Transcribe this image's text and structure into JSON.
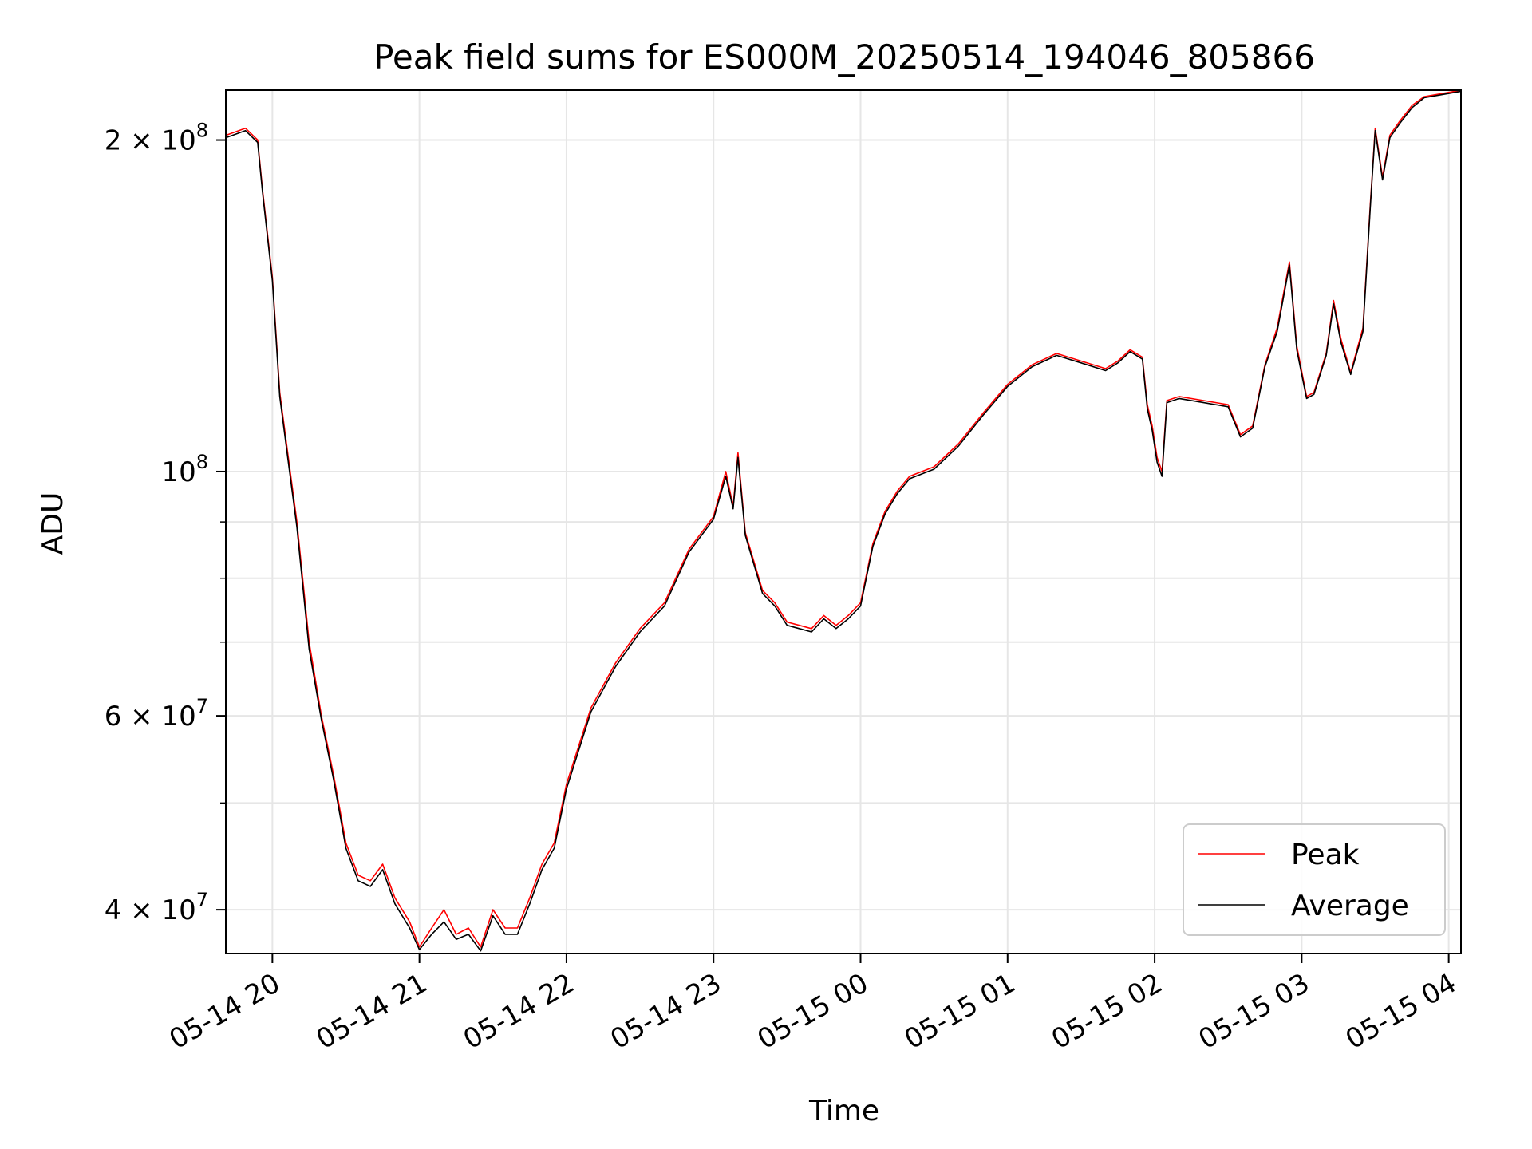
{
  "chart_data": {
    "type": "line",
    "title": "Peak field sums for ES000M_20250514_194046_805866",
    "xlabel": "Time",
    "ylabel": "ADU",
    "xlim": [
      "2025-05-14 19:41",
      "2025-05-15 04:05"
    ],
    "ylim": [
      36500000,
      222000000
    ],
    "yscale": "log",
    "grid": true,
    "legend_position": "lower right",
    "x_ticks": [
      "05-14 20",
      "05-14 21",
      "05-14 22",
      "05-14 23",
      "05-15 00",
      "05-15 01",
      "05-15 02",
      "05-15 03",
      "05-15 04"
    ],
    "y_ticks": [
      {
        "value": 40000000,
        "label": "4 × 10",
        "exp": "7"
      },
      {
        "value": 60000000,
        "label": "6 × 10",
        "exp": "7"
      },
      {
        "value": 100000000,
        "label": "10",
        "exp": "8"
      },
      {
        "value": 200000000,
        "label": "2 × 10",
        "exp": "8"
      }
    ],
    "series": [
      {
        "name": "Peak",
        "color": "#ff0000"
      },
      {
        "name": "Average",
        "color": "#000000"
      }
    ],
    "x": [
      "2025-05-14 19:41",
      "2025-05-14 19:49",
      "2025-05-14 19:54",
      "2025-05-14 19:56",
      "2025-05-14 20:00",
      "2025-05-14 20:03",
      "2025-05-14 20:06",
      "2025-05-14 20:10",
      "2025-05-14 20:15",
      "2025-05-14 20:20",
      "2025-05-14 20:25",
      "2025-05-14 20:30",
      "2025-05-14 20:35",
      "2025-05-14 20:40",
      "2025-05-14 20:45",
      "2025-05-14 20:50",
      "2025-05-14 20:56",
      "2025-05-14 21:00",
      "2025-05-14 21:05",
      "2025-05-14 21:10",
      "2025-05-14 21:15",
      "2025-05-14 21:20",
      "2025-05-14 21:25",
      "2025-05-14 21:30",
      "2025-05-14 21:35",
      "2025-05-14 21:40",
      "2025-05-14 21:45",
      "2025-05-14 21:50",
      "2025-05-14 21:55",
      "2025-05-14 22:00",
      "2025-05-14 22:10",
      "2025-05-14 22:20",
      "2025-05-14 22:30",
      "2025-05-14 22:40",
      "2025-05-14 22:50",
      "2025-05-14 23:00",
      "2025-05-14 23:05",
      "2025-05-14 23:08",
      "2025-05-14 23:10",
      "2025-05-14 23:13",
      "2025-05-14 23:15",
      "2025-05-14 23:20",
      "2025-05-14 23:25",
      "2025-05-14 23:30",
      "2025-05-14 23:35",
      "2025-05-14 23:40",
      "2025-05-14 23:45",
      "2025-05-14 23:50",
      "2025-05-14 23:55",
      "2025-05-15 00:00",
      "2025-05-15 00:05",
      "2025-05-15 00:10",
      "2025-05-15 00:15",
      "2025-05-15 00:20",
      "2025-05-15 00:30",
      "2025-05-15 00:40",
      "2025-05-15 00:50",
      "2025-05-15 01:00",
      "2025-05-15 01:10",
      "2025-05-15 01:20",
      "2025-05-15 01:30",
      "2025-05-15 01:40",
      "2025-05-15 01:45",
      "2025-05-15 01:50",
      "2025-05-15 01:55",
      "2025-05-15 01:57",
      "2025-05-15 01:59",
      "2025-05-15 02:01",
      "2025-05-15 02:03",
      "2025-05-15 02:05",
      "2025-05-15 02:10",
      "2025-05-15 02:20",
      "2025-05-15 02:30",
      "2025-05-15 02:35",
      "2025-05-15 02:40",
      "2025-05-15 02:45",
      "2025-05-15 02:50",
      "2025-05-15 02:55",
      "2025-05-15 02:58",
      "2025-05-15 03:02",
      "2025-05-15 03:05",
      "2025-05-15 03:10",
      "2025-05-15 03:13",
      "2025-05-15 03:16",
      "2025-05-15 03:20",
      "2025-05-15 03:25",
      "2025-05-15 03:28",
      "2025-05-15 03:30",
      "2025-05-15 03:33",
      "2025-05-15 03:36",
      "2025-05-15 03:40",
      "2025-05-15 03:45",
      "2025-05-15 03:50",
      "2025-05-15 04:05"
    ],
    "peak": [
      202000000,
      205000000,
      200000000,
      180000000,
      150000000,
      118000000,
      105000000,
      90000000,
      70000000,
      60000000,
      53000000,
      46000000,
      43000000,
      42500000,
      44000000,
      41000000,
      39000000,
      37000000,
      38500000,
      40000000,
      38000000,
      38500000,
      37000000,
      40000000,
      38500000,
      38500000,
      41000000,
      44000000,
      46000000,
      52000000,
      61000000,
      67000000,
      72000000,
      76000000,
      85000000,
      91000000,
      100000000,
      93000000,
      104000000,
      88000000,
      85000000,
      78000000,
      76000000,
      73000000,
      72500000,
      72000000,
      74000000,
      72500000,
      74000000,
      76000000,
      86000000,
      92000000,
      96000000,
      99000000,
      101000000,
      106000000,
      113000000,
      120000000,
      125000000,
      128000000,
      126000000,
      124000000,
      126000000,
      129000000,
      127000000,
      115000000,
      110000000,
      103000000,
      100000000,
      116000000,
      117000000,
      116000000,
      115000000,
      108000000,
      110000000,
      125000000,
      135000000,
      155000000,
      130000000,
      117000000,
      118000000,
      128000000,
      143000000,
      132000000,
      123000000,
      135000000,
      175000000,
      205000000,
      185000000,
      202000000,
      208000000,
      215000000,
      219000000,
      222000000
    ],
    "average": [
      201000000,
      204000000,
      199000000,
      179000000,
      149000000,
      117000000,
      104000000,
      89000000,
      69000000,
      59500000,
      52500000,
      45500000,
      42500000,
      42000000,
      43500000,
      40500000,
      38500000,
      36800000,
      38000000,
      39000000,
      37600000,
      38000000,
      36700000,
      39500000,
      38000000,
      38000000,
      40500000,
      43500000,
      45500000,
      51500000,
      60500000,
      66500000,
      71500000,
      75500000,
      84500000,
      90500000,
      99000000,
      92500000,
      103000000,
      87500000,
      84500000,
      77500000,
      75500000,
      72500000,
      72000000,
      71500000,
      73500000,
      72000000,
      73500000,
      75500000,
      85500000,
      91500000,
      95500000,
      98500000,
      100500000,
      105500000,
      112500000,
      119500000,
      124500000,
      127500000,
      125500000,
      123500000,
      125500000,
      128500000,
      126500000,
      114000000,
      109000000,
      102000000,
      99000000,
      115500000,
      116500000,
      115500000,
      114500000,
      107500000,
      109500000,
      124500000,
      134000000,
      154000000,
      129000000,
      116500000,
      117500000,
      127500000,
      142000000,
      131000000,
      122500000,
      134000000,
      174000000,
      204000000,
      184000000,
      201000000,
      207000000,
      214000000,
      218500000,
      221500000
    ]
  }
}
